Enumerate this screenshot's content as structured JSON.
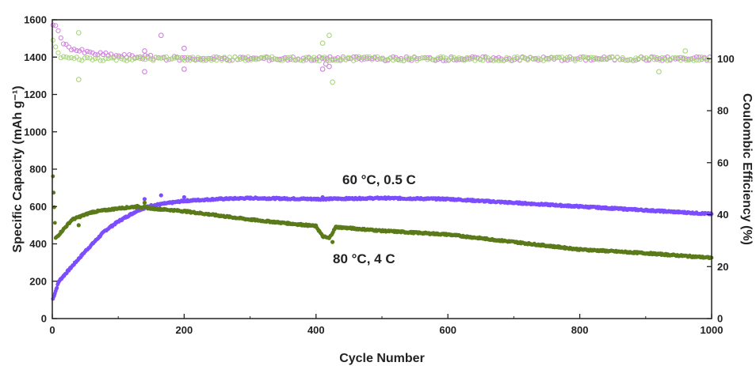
{
  "chart_data": {
    "type": "scatter",
    "title": "",
    "xlabel": "Cycle Number",
    "ylabel": "Specific Capacity (mAh g⁻¹)",
    "ylabel_right": "Coulombic Efficiency (%)",
    "xlim": [
      0,
      1000
    ],
    "ylim": [
      0,
      1600
    ],
    "ylim_right": [
      0,
      115
    ],
    "x_ticks": [
      0,
      200,
      400,
      600,
      800,
      1000
    ],
    "y_ticks": [
      0,
      200,
      400,
      600,
      800,
      1000,
      1200,
      1400,
      1600
    ],
    "y_ticks_right": [
      0,
      20,
      40,
      60,
      80,
      100
    ],
    "grid": false,
    "legend": "none",
    "annotations": [
      {
        "text": "60 °C, 0.5 C",
        "series": "purple-capacity"
      },
      {
        "text": "80 °C, 4 C",
        "series": "green-capacity"
      }
    ],
    "colors": {
      "purple": "#7c4dff",
      "green": "#5b7a1a",
      "purple_ce": "#d080e0",
      "green_ce": "#a8d67a"
    },
    "series": [
      {
        "key": "purple-capacity",
        "color": "#7c4dff",
        "marker": "filled",
        "axis": "left",
        "points": [
          [
            0,
            95
          ],
          [
            10,
            200
          ],
          [
            30,
            280
          ],
          [
            50,
            360
          ],
          [
            80,
            470
          ],
          [
            100,
            520
          ],
          [
            130,
            580
          ],
          [
            150,
            605
          ],
          [
            200,
            630
          ],
          [
            250,
            640
          ],
          [
            300,
            645
          ],
          [
            400,
            640
          ],
          [
            500,
            645
          ],
          [
            600,
            640
          ],
          [
            700,
            620
          ],
          [
            800,
            600
          ],
          [
            900,
            580
          ],
          [
            1000,
            560
          ]
        ]
      },
      {
        "key": "green-capacity",
        "color": "#5b7a1a",
        "marker": "filled",
        "axis": "left",
        "points": [
          [
            0,
            840
          ],
          [
            5,
            430
          ],
          [
            30,
            530
          ],
          [
            60,
            570
          ],
          [
            100,
            590
          ],
          [
            130,
            600
          ],
          [
            150,
            590
          ],
          [
            200,
            575
          ],
          [
            300,
            530
          ],
          [
            400,
            495
          ],
          [
            410,
            440
          ],
          [
            420,
            430
          ],
          [
            430,
            490
          ],
          [
            500,
            470
          ],
          [
            600,
            450
          ],
          [
            700,
            410
          ],
          [
            800,
            370
          ],
          [
            900,
            350
          ],
          [
            1000,
            325
          ]
        ]
      },
      {
        "key": "purple-ce",
        "color": "#d080e0",
        "marker": "open",
        "axis": "right",
        "points": [
          [
            0,
            114
          ],
          [
            10,
            110
          ],
          [
            20,
            105
          ],
          [
            40,
            103
          ],
          [
            60,
            102
          ],
          [
            100,
            101
          ],
          [
            200,
            100
          ],
          [
            400,
            100
          ],
          [
            600,
            100
          ],
          [
            800,
            100
          ],
          [
            1000,
            100
          ]
        ]
      },
      {
        "key": "green-ce",
        "color": "#a8d67a",
        "marker": "open",
        "axis": "right",
        "points": [
          [
            0,
            108
          ],
          [
            10,
            101
          ],
          [
            30,
            100
          ],
          [
            100,
            100
          ],
          [
            300,
            100
          ],
          [
            500,
            100
          ],
          [
            700,
            100
          ],
          [
            900,
            100
          ],
          [
            1000,
            100
          ]
        ]
      }
    ],
    "outliers": {
      "purple-capacity": [
        [
          140,
          640
        ],
        [
          165,
          660
        ],
        [
          200,
          650
        ],
        [
          410,
          650
        ]
      ],
      "green-capacity": [
        [
          140,
          620
        ],
        [
          40,
          500
        ],
        [
          425,
          410
        ]
      ],
      "purple-ce": [
        [
          140,
          103
        ],
        [
          140,
          95
        ],
        [
          165,
          109
        ],
        [
          200,
          96
        ],
        [
          200,
          104
        ],
        [
          410,
          96
        ],
        [
          420,
          97
        ],
        [
          415,
          98
        ]
      ],
      "green-ce": [
        [
          40,
          110
        ],
        [
          40,
          92
        ],
        [
          410,
          106
        ],
        [
          420,
          109
        ],
        [
          425,
          91
        ],
        [
          920,
          95
        ],
        [
          960,
          103
        ]
      ]
    }
  }
}
